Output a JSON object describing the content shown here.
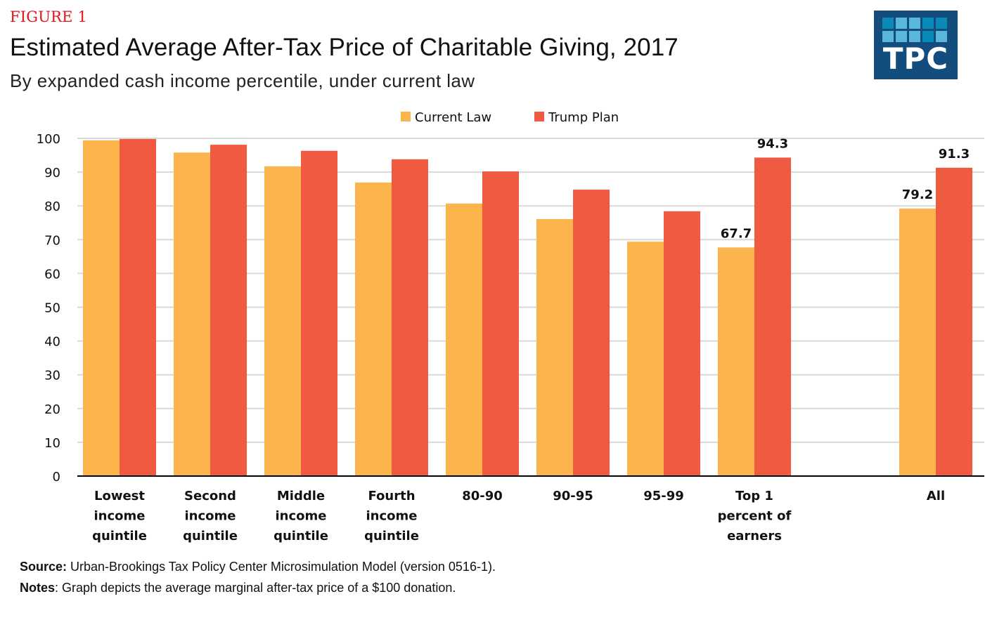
{
  "header": {
    "figure_label": "FIGURE 1",
    "title": "Estimated Average After-Tax Price of Charitable Giving, 2017",
    "subtitle": "By expanded cash income percentile, under current law"
  },
  "logo": {
    "text": "TPC",
    "background_color": "#124d7d",
    "tile_colors": [
      "#0b8ab8",
      "#59b8d9",
      "#59b8d9",
      "#0b8ab8",
      "#0b8ab8",
      "#59b8d9",
      "#59b8d9",
      "#59b8d9",
      "#0b8ab8",
      "#59b8d9"
    ]
  },
  "footer": {
    "source_label": "Source:",
    "source_text": " Urban-Brookings Tax Policy Center Microsimulation Model (version 0516-1).",
    "notes_label": "Notes",
    "notes_text": ": Graph depicts the average marginal after-tax price of a $100 donation."
  },
  "chart_data": {
    "type": "bar",
    "title": "Estimated Average After-Tax Price of Charitable Giving, 2017",
    "subtitle": "By expanded cash income percentile, under current law",
    "xlabel": "",
    "ylabel": "",
    "ylim": [
      0,
      100
    ],
    "yticks": [
      0,
      10,
      20,
      30,
      40,
      50,
      60,
      70,
      80,
      90,
      100
    ],
    "grid": true,
    "legend_position": "top-center",
    "categories": [
      [
        "Lowest",
        "income",
        "quintile"
      ],
      [
        "Second",
        "income",
        "quintile"
      ],
      [
        "Middle",
        "income",
        "quintile"
      ],
      [
        "Fourth",
        "income",
        "quintile"
      ],
      [
        "80-90"
      ],
      [
        "90-95"
      ],
      [
        "95-99"
      ],
      [
        "Top 1",
        "percent of",
        "earners"
      ],
      [
        ""
      ],
      [
        "All"
      ]
    ],
    "series": [
      {
        "name": "Current Law",
        "color": "#fbb54c",
        "values": [
          99.4,
          95.8,
          91.7,
          86.9,
          80.7,
          76.1,
          69.4,
          67.7,
          null,
          79.2
        ],
        "labels": [
          null,
          null,
          null,
          null,
          null,
          null,
          null,
          "67.7",
          null,
          "79.2"
        ]
      },
      {
        "name": "Trump Plan",
        "color": "#f05a40",
        "values": [
          99.8,
          98.1,
          96.3,
          93.8,
          90.2,
          84.8,
          78.4,
          94.3,
          null,
          91.3
        ],
        "labels": [
          null,
          null,
          null,
          null,
          null,
          null,
          null,
          "94.3",
          null,
          "91.3"
        ]
      }
    ]
  }
}
